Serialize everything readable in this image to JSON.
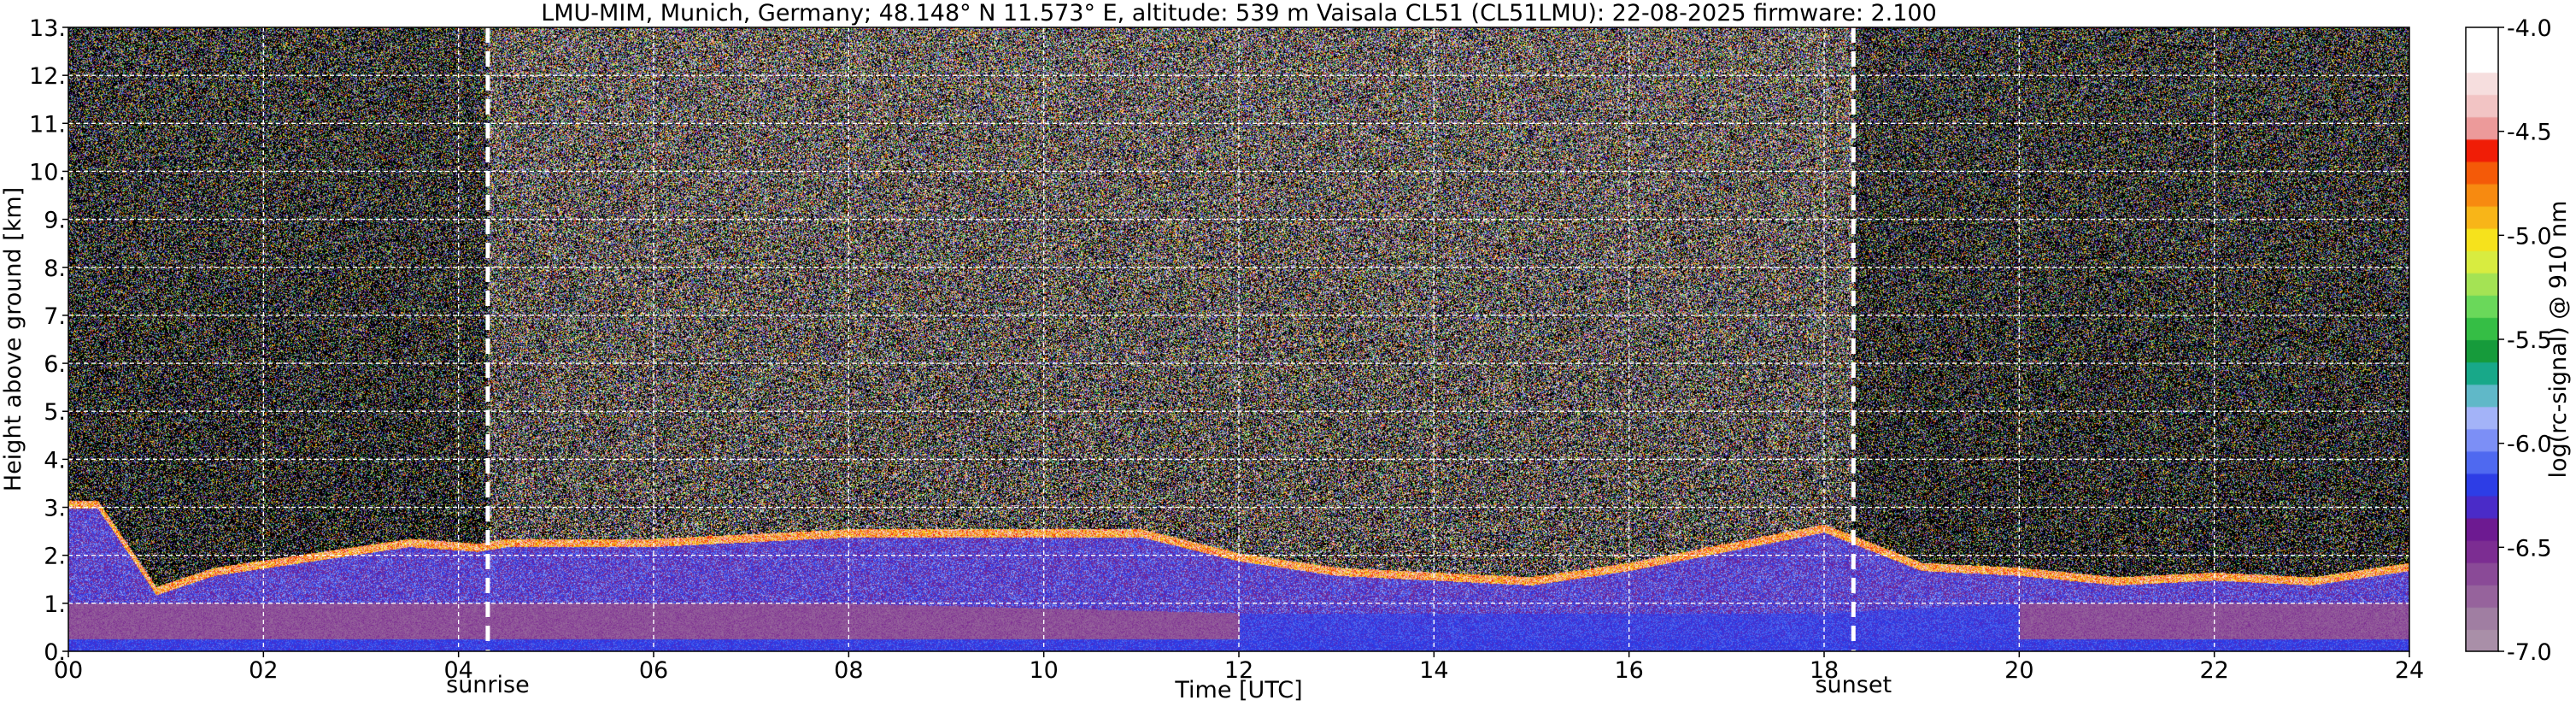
{
  "chart_data": {
    "type": "heatmap",
    "title": "LMU-MIM, Munich, Germany; 48.148° N 11.573° E, altitude: 539 m    Vaisala CL51 (CL51LMU): 22-08-2025    firmware: 2.100",
    "xlabel": "Time [UTC]",
    "ylabel": "Height above ground [km]",
    "xlim": [
      0,
      24
    ],
    "ylim": [
      0,
      13
    ],
    "x_ticks": [
      {
        "value": 0,
        "label": "00"
      },
      {
        "value": 2,
        "label": "02"
      },
      {
        "value": 4,
        "label": "04"
      },
      {
        "value": 6,
        "label": "06"
      },
      {
        "value": 8,
        "label": "08"
      },
      {
        "value": 10,
        "label": "10"
      },
      {
        "value": 12,
        "label": "12"
      },
      {
        "value": 14,
        "label": "14"
      },
      {
        "value": 16,
        "label": "16"
      },
      {
        "value": 18,
        "label": "18"
      },
      {
        "value": 20,
        "label": "20"
      },
      {
        "value": 22,
        "label": "22"
      },
      {
        "value": 24,
        "label": "24"
      }
    ],
    "y_ticks": [
      {
        "value": 0,
        "label": "0."
      },
      {
        "value": 1,
        "label": "1."
      },
      {
        "value": 2,
        "label": "2."
      },
      {
        "value": 3,
        "label": "3."
      },
      {
        "value": 4,
        "label": "4."
      },
      {
        "value": 5,
        "label": "5."
      },
      {
        "value": 6,
        "label": "6."
      },
      {
        "value": 7,
        "label": "7."
      },
      {
        "value": 8,
        "label": "8."
      },
      {
        "value": 9,
        "label": "9."
      },
      {
        "value": 10,
        "label": "10."
      },
      {
        "value": 11,
        "label": "11."
      },
      {
        "value": 12,
        "label": "12."
      },
      {
        "value": 13,
        "label": "13."
      }
    ],
    "grid": true,
    "annotations": [
      {
        "name": "sunrise",
        "label": "sunrise",
        "x": 4.3
      },
      {
        "name": "sunset",
        "label": "sunset",
        "x": 18.3
      }
    ],
    "colorbar": {
      "label": "log(rc-signal) @ 910 nm",
      "range": [
        -7.0,
        -4.0
      ],
      "ticks": [
        {
          "value": -7.0,
          "label": "-7.0"
        },
        {
          "value": -6.5,
          "label": "-6.5"
        },
        {
          "value": -6.0,
          "label": "-6.0"
        },
        {
          "value": -5.5,
          "label": "-5.5"
        },
        {
          "value": -5.0,
          "label": "-5.0"
        },
        {
          "value": -4.5,
          "label": "-4.5"
        },
        {
          "value": -4.0,
          "label": "-4.0"
        }
      ],
      "colors": [
        "#a98fa8",
        "#a07ea2",
        "#96639c",
        "#8a4a97",
        "#7c2d92",
        "#6d1a91",
        "#4a2bc8",
        "#2d3de6",
        "#4f69f0",
        "#7c8ff6",
        "#a3b3f8",
        "#60b8c8",
        "#18a889",
        "#169b3b",
        "#35be45",
        "#6ad85a",
        "#a4e354",
        "#d8ec40",
        "#f6e21c",
        "#f8b518",
        "#f78a10",
        "#f45a08",
        "#f01d06",
        "#ec9a9a",
        "#f2c4c4",
        "#f6dede",
        "#ffffff",
        "#ffffff"
      ]
    },
    "layers": [
      {
        "name": "cloud/aerosol-layer-top",
        "description_x": [
          0,
          24
        ],
        "height_km_points": [
          [
            0.3,
            3.1
          ],
          [
            0.9,
            1.3
          ],
          [
            1.5,
            1.7
          ],
          [
            2.5,
            2.0
          ],
          [
            3.5,
            2.3
          ],
          [
            4.2,
            2.2
          ],
          [
            4.5,
            2.3
          ],
          [
            6,
            2.3
          ],
          [
            7,
            2.4
          ],
          [
            8,
            2.5
          ],
          [
            9,
            2.5
          ],
          [
            10,
            2.5
          ],
          [
            11,
            2.5
          ],
          [
            12,
            2.0
          ],
          [
            13,
            1.7
          ],
          [
            14,
            1.6
          ],
          [
            15,
            1.5
          ],
          [
            16,
            1.8
          ],
          [
            17,
            2.2
          ],
          [
            18,
            2.6
          ],
          [
            19,
            1.8
          ],
          [
            20,
            1.7
          ],
          [
            21,
            1.5
          ],
          [
            22,
            1.6
          ],
          [
            23,
            1.5
          ],
          [
            24,
            1.8
          ]
        ]
      },
      {
        "name": "boundary-layer-top",
        "description_x": [
          0,
          24
        ],
        "height_km_points": [
          [
            0,
            1.0
          ],
          [
            2,
            1.0
          ],
          [
            4,
            1.0
          ],
          [
            6,
            1.0
          ],
          [
            8,
            1.0
          ],
          [
            10,
            0.9
          ],
          [
            12,
            0.8
          ],
          [
            14,
            0.8
          ],
          [
            16,
            0.8
          ],
          [
            18,
            0.8
          ],
          [
            20,
            1.0
          ],
          [
            22,
            1.0
          ],
          [
            24,
            1.0
          ]
        ]
      }
    ]
  }
}
